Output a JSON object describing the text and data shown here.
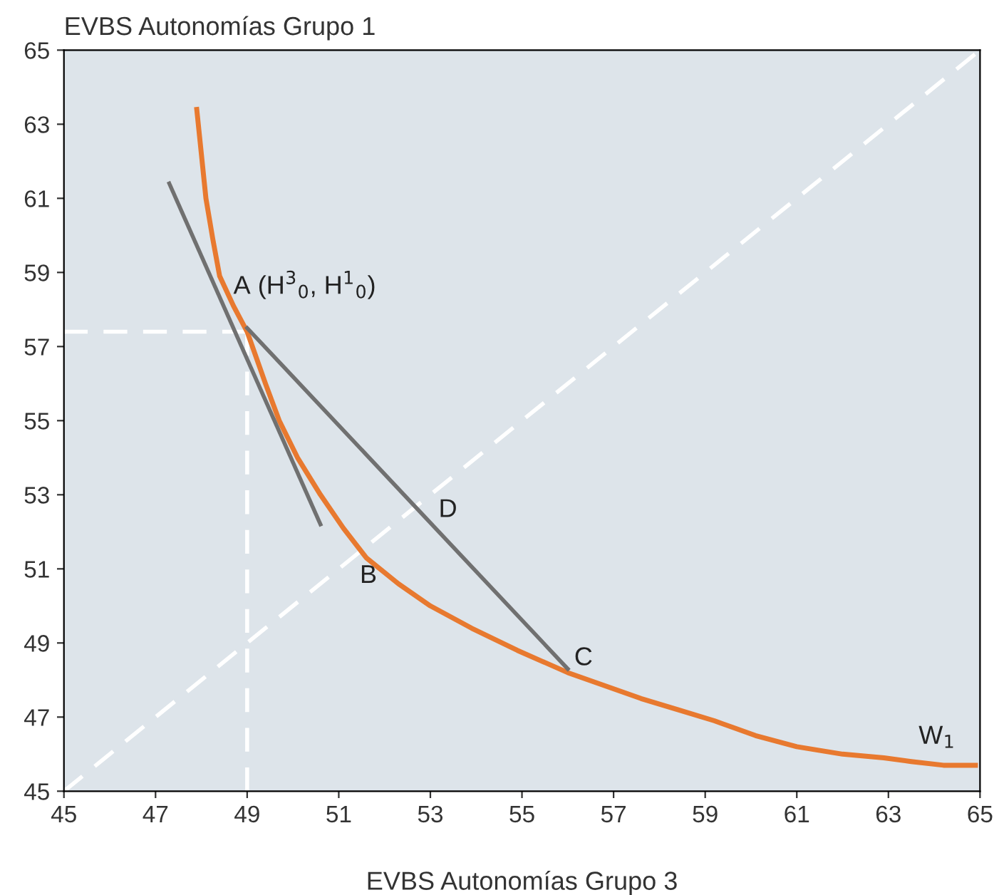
{
  "chart_data": {
    "type": "line",
    "ylabel": "EVBS Autonomías Grupo 1",
    "xlabel": "EVBS Autonomías Grupo 3",
    "xlim": [
      45,
      65
    ],
    "ylim": [
      45,
      65
    ],
    "xticks": [
      45,
      47,
      49,
      51,
      53,
      55,
      57,
      59,
      61,
      63,
      65
    ],
    "yticks": [
      45,
      47,
      49,
      51,
      53,
      55,
      57,
      59,
      61,
      63,
      65
    ],
    "grid": false,
    "marker": "none",
    "series": [
      {
        "color": "#ffffff",
        "line_style": "dashed",
        "x": [
          45,
          65
        ],
        "values": [
          45,
          65
        ]
      },
      {
        "color": "#ffffff",
        "line_style": "dashed",
        "x": [
          49,
          49
        ],
        "values": [
          45,
          57.4
        ]
      },
      {
        "color": "#ffffff",
        "line_style": "dashed",
        "x": [
          45,
          49
        ],
        "values": [
          57.4,
          57.4
        ]
      },
      {
        "color": "#e8792f",
        "line_style": "solid",
        "x": [
          47.9,
          48.0,
          48.1,
          48.25,
          48.4,
          48.7,
          49.0,
          49.4,
          49.7,
          50.1,
          50.6,
          51.1,
          51.6,
          52.3,
          53.0,
          53.9,
          54.9,
          56.0,
          57.6,
          58.4,
          59.2,
          60.1,
          61.0,
          62.0,
          62.9,
          63.5,
          64.2,
          64.9
        ],
        "values": [
          63.4,
          62.2,
          61.0,
          59.9,
          58.9,
          58.1,
          57.4,
          56.0,
          55.0,
          54.0,
          53.0,
          52.1,
          51.3,
          50.6,
          50.0,
          49.4,
          48.8,
          48.2,
          47.5,
          47.2,
          46.9,
          46.5,
          46.2,
          46.0,
          45.9,
          45.8,
          45.7,
          45.7
        ]
      },
      {
        "color": "#707070",
        "line_style": "solid",
        "x": [
          47.3,
          50.6
        ],
        "values": [
          61.4,
          52.2
        ]
      },
      {
        "color": "#707070",
        "line_style": "solid",
        "x": [
          49.0,
          56.0
        ],
        "values": [
          57.5,
          48.3
        ]
      }
    ],
    "annotations": [
      "A (H$^{3}$$_{0}$, H$^{1}$$_{0}$)",
      "B",
      "C",
      "D",
      "W$_{1}$"
    ]
  }
}
